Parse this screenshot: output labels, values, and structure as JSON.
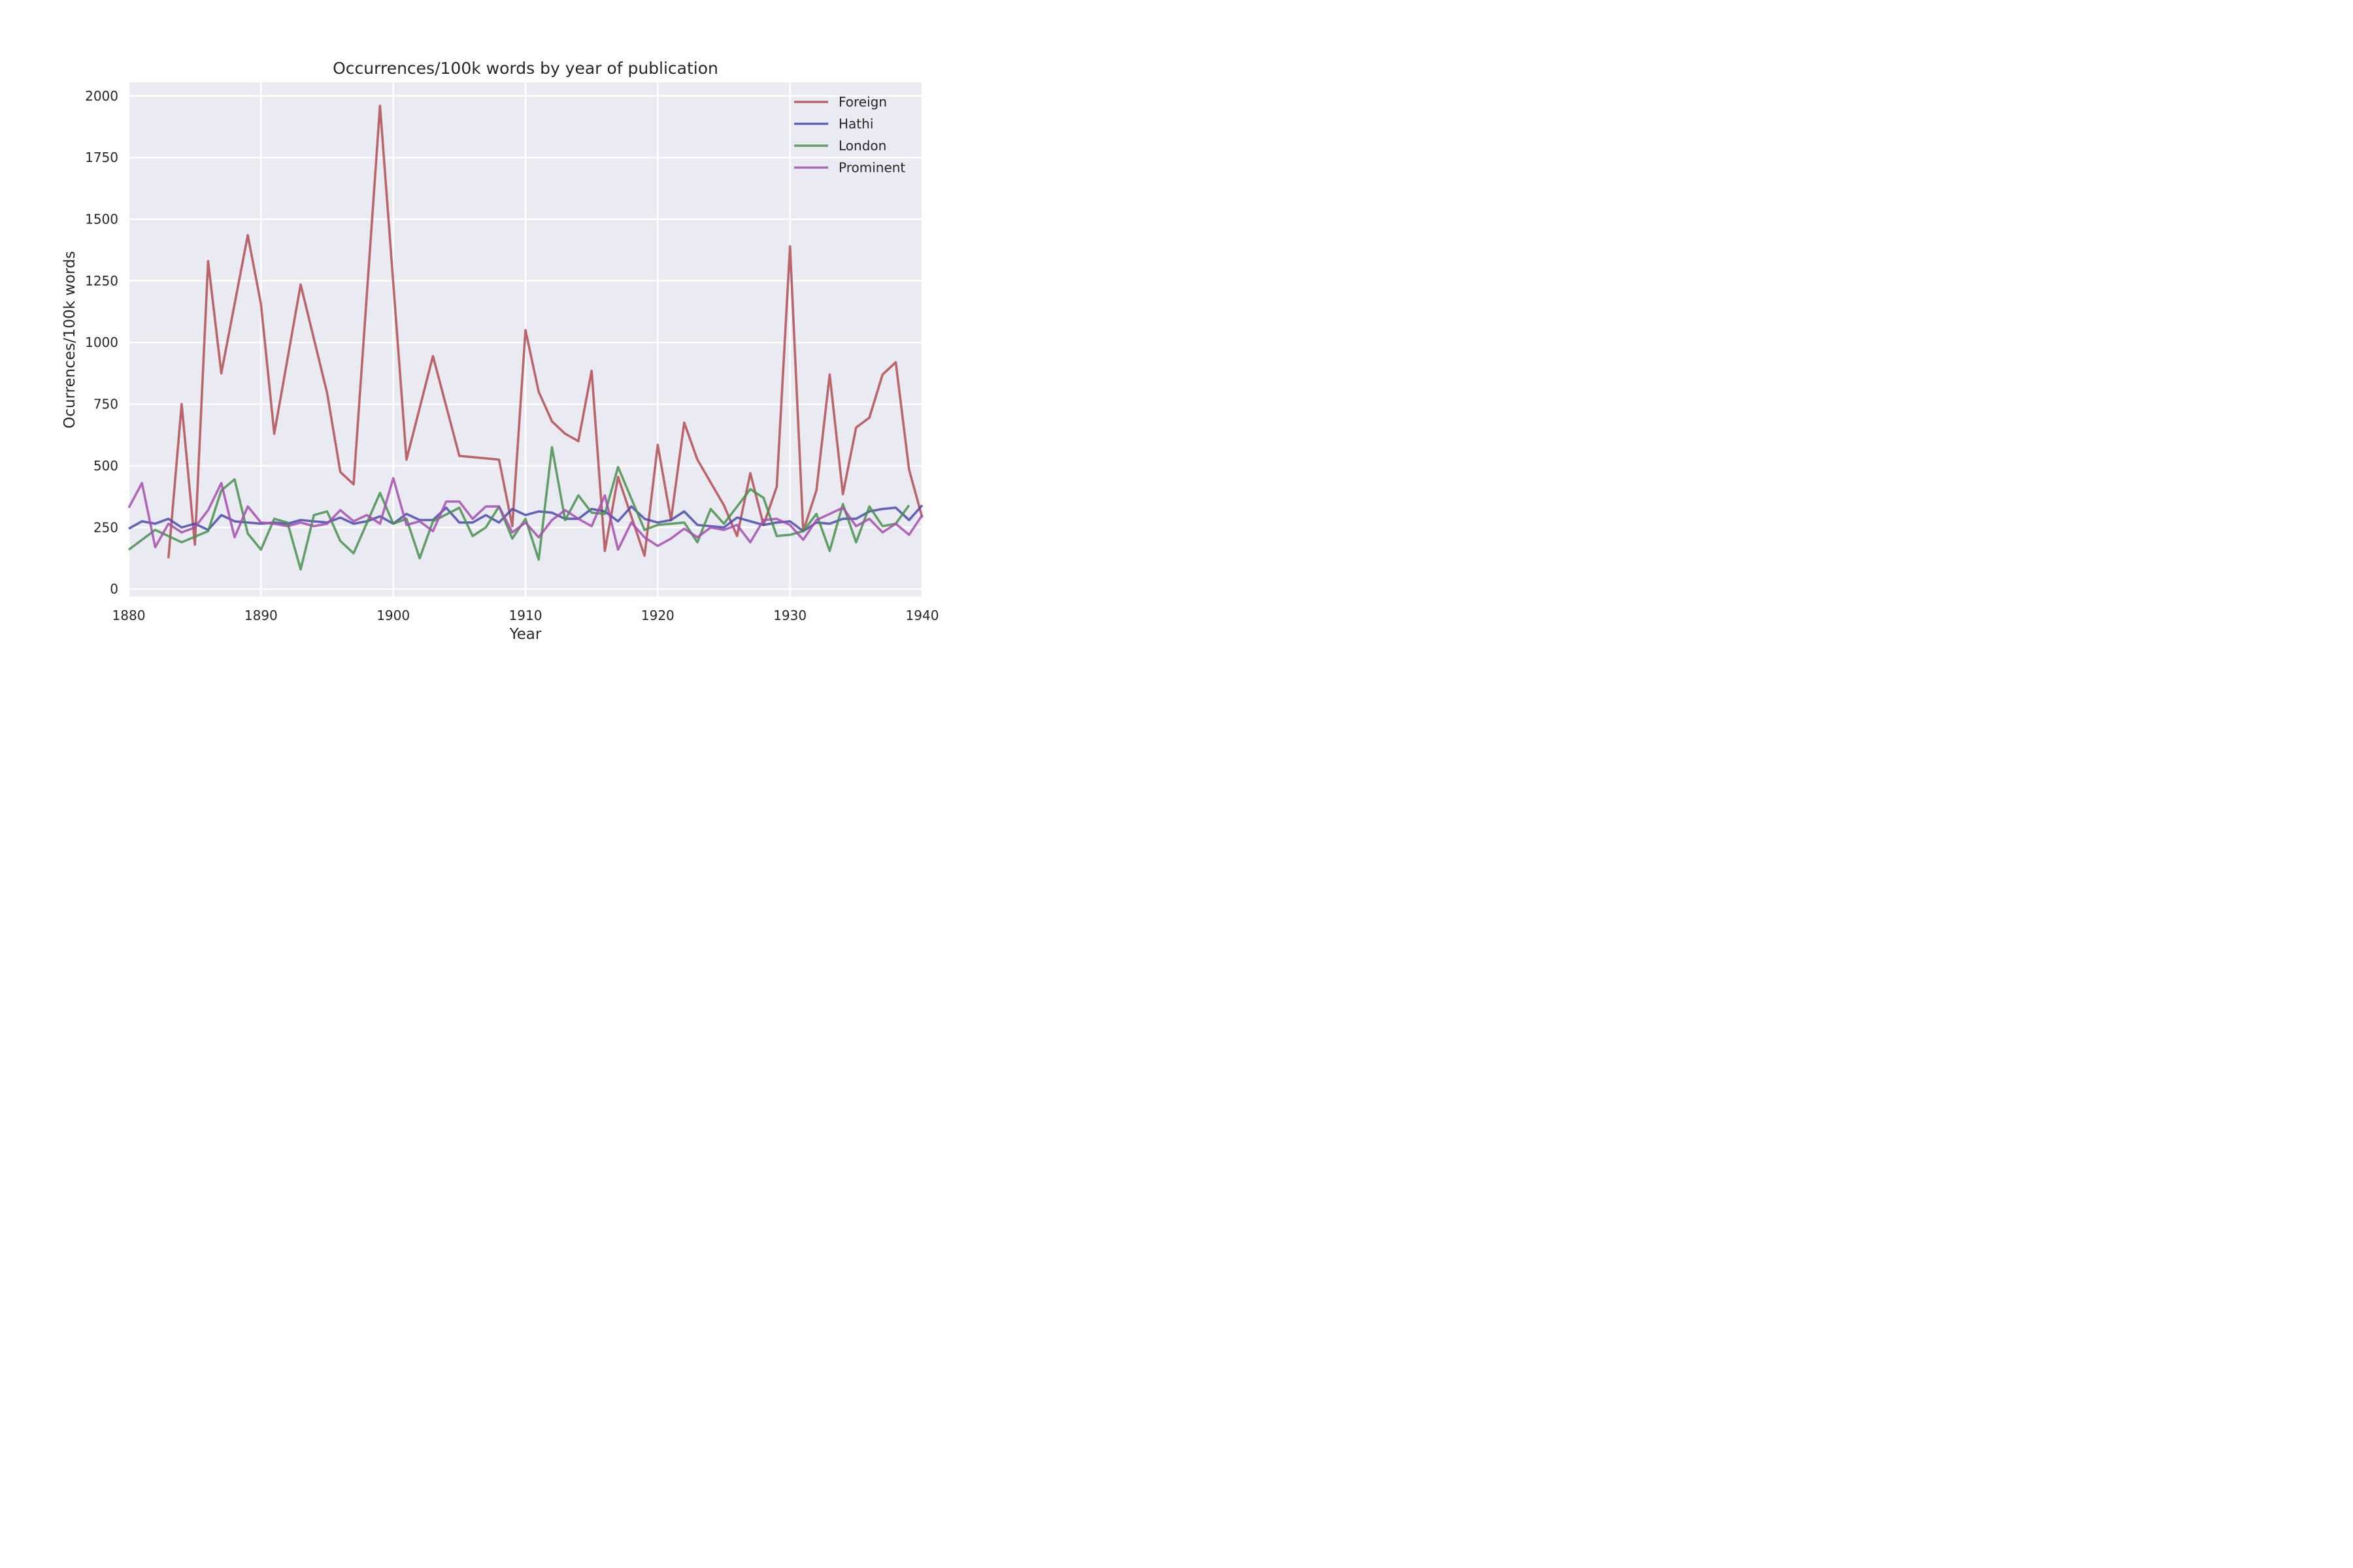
{
  "chart_data": {
    "type": "line",
    "title": "Occurrences/100k words by year of publication",
    "xlabel": "Year",
    "ylabel": "Ocurrences/100k words",
    "xlim": [
      1880,
      1940
    ],
    "ylim": [
      -30,
      2055
    ],
    "xticks": [
      1880,
      1890,
      1900,
      1910,
      1920,
      1930,
      1940
    ],
    "yticks": [
      0,
      250,
      500,
      750,
      1000,
      1250,
      1500,
      1750,
      2000
    ],
    "grid": true,
    "legend_position": "top-right",
    "colors": {
      "background": "#eaeaf2",
      "grid": "#ffffff",
      "Foreign": "#b14e53",
      "Hathi": "#4b4bab",
      "London": "#4a914f",
      "Prominent": "#a550ad"
    },
    "series": [
      {
        "name": "Foreign",
        "x": [
          1883,
          1884,
          1885,
          1886,
          1887,
          1889,
          1890,
          1891,
          1893,
          1895,
          1896,
          1897,
          1899,
          1901,
          1903,
          1905,
          1908,
          1909,
          1910,
          1911,
          1912,
          1913,
          1914,
          1915,
          1916,
          1917,
          1919,
          1920,
          1921,
          1922,
          1923,
          1925,
          1926,
          1927,
          1928,
          1929,
          1930,
          1931,
          1932,
          1933,
          1934,
          1935,
          1936,
          1937,
          1938,
          1939,
          1940
        ],
        "y": [
          125,
          750,
          180,
          1330,
          875,
          1435,
          1155,
          630,
          1235,
          795,
          475,
          425,
          1960,
          525,
          945,
          540,
          525,
          255,
          1050,
          800,
          680,
          630,
          600,
          885,
          155,
          455,
          135,
          585,
          280,
          675,
          525,
          340,
          215,
          470,
          260,
          415,
          1390,
          235,
          400,
          870,
          385,
          655,
          695,
          870,
          920,
          485,
          290
        ]
      },
      {
        "name": "Hathi",
        "x": [
          1880,
          1881,
          1882,
          1883,
          1884,
          1885,
          1886,
          1887,
          1888,
          1889,
          1890,
          1891,
          1892,
          1893,
          1894,
          1895,
          1896,
          1897,
          1898,
          1899,
          1900,
          1901,
          1902,
          1903,
          1904,
          1905,
          1906,
          1907,
          1908,
          1909,
          1910,
          1911,
          1912,
          1913,
          1914,
          1915,
          1916,
          1917,
          1918,
          1919,
          1920,
          1921,
          1922,
          1923,
          1924,
          1925,
          1926,
          1927,
          1928,
          1929,
          1930,
          1931,
          1932,
          1933,
          1934,
          1935,
          1936,
          1937,
          1938,
          1939,
          1940
        ],
        "y": [
          245,
          275,
          265,
          285,
          250,
          265,
          240,
          300,
          275,
          270,
          265,
          270,
          265,
          280,
          275,
          270,
          290,
          265,
          275,
          295,
          265,
          305,
          280,
          280,
          330,
          270,
          270,
          300,
          270,
          325,
          300,
          315,
          310,
          285,
          285,
          325,
          315,
          275,
          335,
          285,
          270,
          280,
          315,
          260,
          255,
          250,
          290,
          275,
          260,
          270,
          275,
          235,
          270,
          265,
          285,
          285,
          315,
          325,
          330,
          280,
          340
        ]
      },
      {
        "name": "London",
        "x": [
          1880,
          1882,
          1884,
          1886,
          1887,
          1888,
          1889,
          1890,
          1891,
          1892,
          1893,
          1894,
          1895,
          1896,
          1897,
          1899,
          1900,
          1901,
          1902,
          1903,
          1905,
          1906,
          1907,
          1908,
          1909,
          1910,
          1911,
          1912,
          1913,
          1914,
          1915,
          1916,
          1917,
          1919,
          1920,
          1922,
          1923,
          1924,
          1925,
          1927,
          1928,
          1929,
          1930,
          1931,
          1932,
          1933,
          1934,
          1935,
          1936,
          1937,
          1938,
          1939
        ],
        "y": [
          160,
          240,
          190,
          235,
          400,
          445,
          225,
          160,
          285,
          270,
          80,
          300,
          315,
          195,
          145,
          390,
          265,
          285,
          125,
          275,
          330,
          215,
          250,
          335,
          205,
          285,
          120,
          575,
          280,
          380,
          310,
          305,
          495,
          240,
          260,
          270,
          190,
          325,
          265,
          405,
          370,
          215,
          220,
          235,
          305,
          155,
          345,
          190,
          335,
          255,
          265,
          340
        ]
      },
      {
        "name": "Prominent",
        "x": [
          1880,
          1881,
          1882,
          1883,
          1884,
          1885,
          1886,
          1887,
          1888,
          1889,
          1890,
          1891,
          1892,
          1893,
          1894,
          1895,
          1896,
          1897,
          1898,
          1899,
          1900,
          1901,
          1902,
          1903,
          1904,
          1905,
          1906,
          1907,
          1908,
          1909,
          1910,
          1911,
          1912,
          1913,
          1914,
          1915,
          1916,
          1917,
          1918,
          1919,
          1920,
          1921,
          1922,
          1923,
          1924,
          1925,
          1926,
          1927,
          1928,
          1929,
          1930,
          1931,
          1932,
          1933,
          1934,
          1935,
          1936,
          1937,
          1938,
          1939,
          1940
        ],
        "y": [
          330,
          430,
          170,
          265,
          230,
          250,
          320,
          430,
          210,
          335,
          270,
          265,
          255,
          270,
          255,
          265,
          320,
          275,
          300,
          265,
          450,
          260,
          275,
          235,
          355,
          355,
          285,
          335,
          335,
          230,
          270,
          210,
          280,
          320,
          285,
          255,
          380,
          160,
          270,
          210,
          175,
          205,
          245,
          210,
          250,
          240,
          260,
          190,
          280,
          285,
          260,
          200,
          280,
          305,
          330,
          255,
          285,
          230,
          265,
          220,
          300
        ]
      }
    ]
  }
}
